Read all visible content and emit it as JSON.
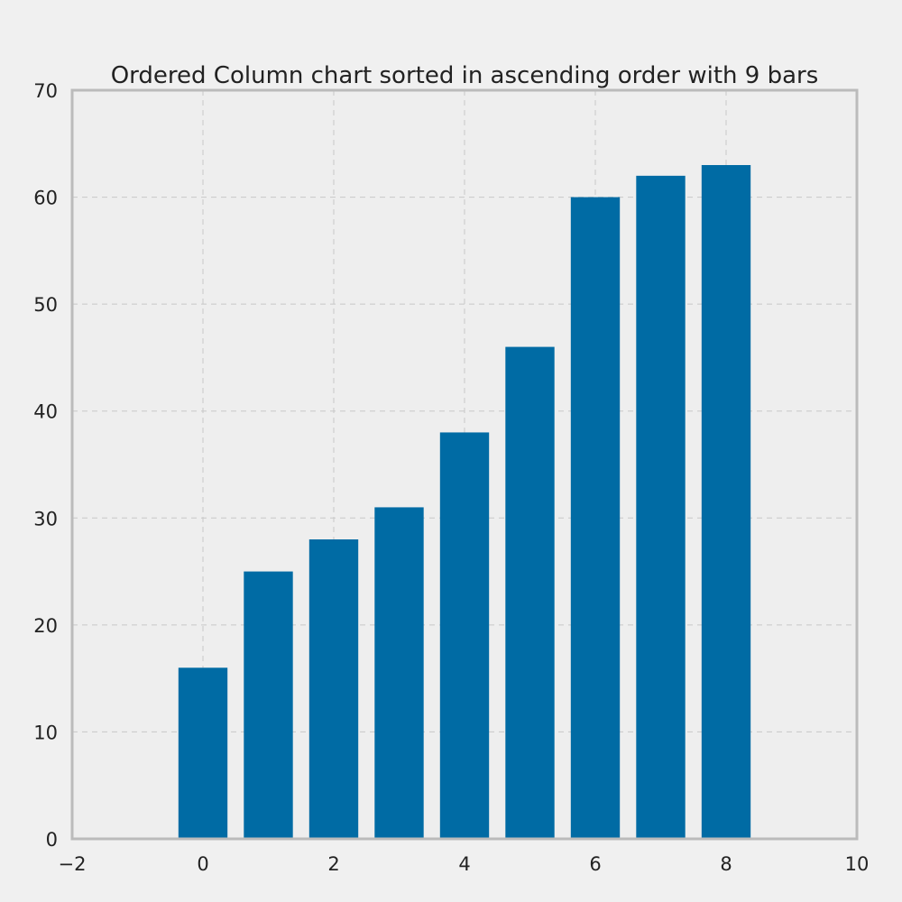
{
  "chart_data": {
    "type": "bar",
    "title": "Ordered Column chart sorted in ascending order with 9 bars",
    "xlabel": "",
    "ylabel": "",
    "x": [
      0,
      1,
      2,
      3,
      4,
      5,
      6,
      7,
      8
    ],
    "values": [
      16,
      25,
      28,
      31,
      38,
      46,
      60,
      62,
      63
    ],
    "bar_width": 0.75,
    "xlim": [
      -2,
      10
    ],
    "ylim": [
      0,
      70
    ],
    "xticks": [
      -2,
      0,
      2,
      4,
      6,
      8,
      10
    ],
    "xtick_labels": [
      "−2",
      "0",
      "2",
      "4",
      "6",
      "8",
      "10"
    ],
    "yticks": [
      0,
      10,
      20,
      30,
      40,
      50,
      60,
      70
    ],
    "ytick_labels": [
      "0",
      "10",
      "20",
      "30",
      "40",
      "50",
      "60",
      "70"
    ],
    "grid": true,
    "legend": "none"
  },
  "colors": {
    "background": "#f0f0f0",
    "plot_background": "#eeeeee",
    "bar": "#006ba4",
    "grid": "#c8c8c8",
    "frame": "#bbbbbb",
    "text": "#222222"
  }
}
